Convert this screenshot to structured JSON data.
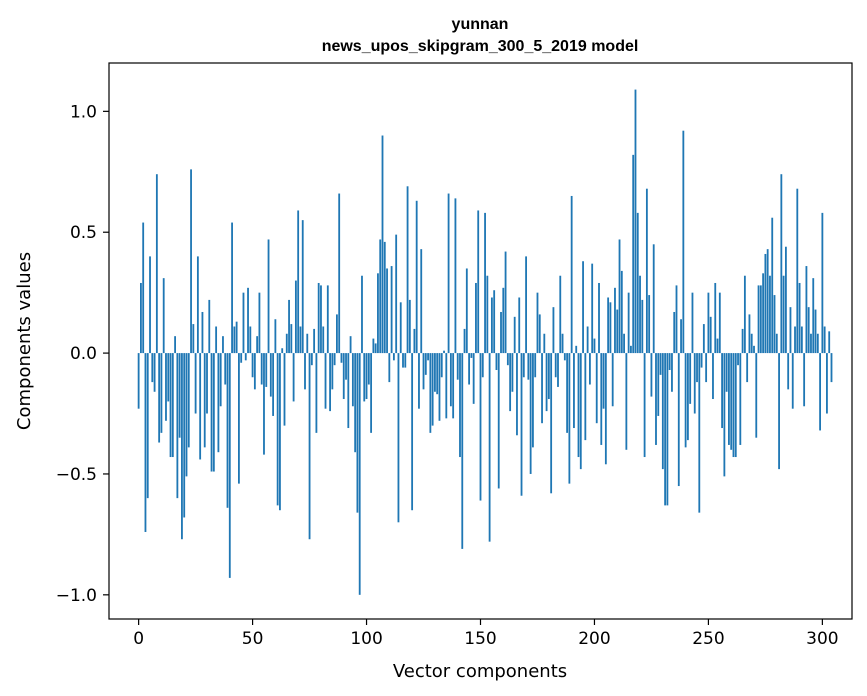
{
  "chart_data": {
    "type": "bar",
    "title_line1": "yunnan",
    "title_line2": "news_upos_skipgram_300_5_2019 model",
    "xlabel": "Vector components",
    "ylabel": "Components values",
    "xlim": [
      -13,
      313
    ],
    "ylim": [
      -1.1,
      1.2
    ],
    "xticks": [
      0,
      50,
      100,
      150,
      200,
      250,
      300
    ],
    "xtick_labels": [
      "0",
      "50",
      "100",
      "150",
      "200",
      "250",
      "300"
    ],
    "yticks": [
      -1.0,
      -0.5,
      0.0,
      0.5,
      1.0
    ],
    "ytick_labels": [
      "−1.0",
      "−0.5",
      "0.0",
      "0.5",
      "1.0"
    ],
    "bar_color": "#1f77b4",
    "values": [
      -0.23,
      0.29,
      0.54,
      -0.74,
      -0.6,
      0.4,
      -0.12,
      -0.16,
      0.74,
      -0.37,
      -0.33,
      0.31,
      -0.28,
      -0.2,
      -0.43,
      -0.43,
      0.07,
      -0.6,
      -0.35,
      -0.77,
      -0.68,
      -0.51,
      -0.39,
      0.76,
      0.12,
      -0.25,
      0.4,
      -0.44,
      0.17,
      -0.39,
      -0.25,
      0.22,
      -0.49,
      -0.49,
      0.11,
      -0.41,
      -0.22,
      0.07,
      -0.13,
      -0.64,
      -0.93,
      0.54,
      0.11,
      0.13,
      -0.54,
      -0.04,
      0.25,
      -0.03,
      0.27,
      0.11,
      -0.1,
      -0.15,
      0.07,
      0.25,
      -0.13,
      -0.42,
      -0.14,
      0.47,
      -0.18,
      -0.26,
      0.14,
      -0.63,
      -0.65,
      0.02,
      -0.3,
      0.08,
      0.22,
      0.12,
      -0.2,
      0.3,
      0.59,
      0.11,
      0.55,
      -0.15,
      0.08,
      -0.77,
      -0.05,
      0.1,
      -0.33,
      0.29,
      0.28,
      0.11,
      -0.23,
      0.28,
      -0.24,
      -0.15,
      -0.05,
      0.16,
      0.66,
      -0.04,
      -0.19,
      -0.11,
      -0.31,
      0.07,
      -0.22,
      -0.41,
      -0.66,
      -1.0,
      0.32,
      -0.2,
      -0.19,
      -0.13,
      -0.33,
      0.06,
      0.04,
      0.33,
      0.47,
      0.9,
      0.46,
      0.35,
      -0.12,
      0.36,
      -0.03,
      0.49,
      -0.7,
      0.21,
      -0.06,
      -0.06,
      0.69,
      0.22,
      -0.65,
      0.1,
      0.63,
      -0.23,
      0.43,
      -0.15,
      -0.09,
      -0.03,
      -0.33,
      -0.3,
      -0.16,
      -0.17,
      -0.28,
      -0.1,
      0.01,
      -0.27,
      0.66,
      -0.22,
      -0.27,
      0.64,
      -0.11,
      -0.43,
      -0.81,
      0.1,
      0.35,
      -0.13,
      -0.02,
      -0.21,
      0.29,
      0.59,
      -0.61,
      -0.1,
      0.58,
      0.32,
      -0.78,
      0.23,
      0.26,
      -0.07,
      -0.56,
      0.17,
      0.27,
      0.42,
      -0.05,
      -0.24,
      -0.16,
      0.15,
      -0.34,
      0.23,
      -0.59,
      -0.1,
      0.4,
      -0.11,
      -0.5,
      -0.39,
      -0.1,
      0.25,
      0.16,
      -0.29,
      0.08,
      -0.24,
      -0.19,
      -0.58,
      0.19,
      -0.1,
      -0.14,
      0.32,
      0.08,
      -0.03,
      -0.33,
      -0.54,
      0.65,
      -0.31,
      0.03,
      -0.43,
      -0.48,
      0.38,
      -0.36,
      0.11,
      -0.13,
      0.37,
      0.06,
      -0.29,
      0.29,
      -0.38,
      -0.23,
      -0.46,
      0.23,
      0.21,
      -0.22,
      0.27,
      0.18,
      0.47,
      0.34,
      0.08,
      -0.4,
      0.25,
      0.03,
      0.82,
      1.09,
      0.58,
      0.32,
      0.22,
      -0.43,
      0.68,
      0.24,
      -0.18,
      0.45,
      -0.38,
      -0.26,
      -0.09,
      -0.48,
      -0.63,
      -0.63,
      -0.07,
      -0.16,
      0.17,
      0.28,
      -0.55,
      0.14,
      0.92,
      -0.39,
      -0.36,
      -0.21,
      0.25,
      -0.25,
      -0.12,
      -0.66,
      -0.06,
      0.12,
      -0.12,
      0.25,
      0.15,
      -0.19,
      0.29,
      0.06,
      0.25,
      -0.31,
      -0.51,
      -0.16,
      -0.38,
      -0.4,
      -0.43,
      -0.43,
      -0.05,
      -0.38,
      0.1,
      0.32,
      -0.12,
      0.16,
      0.08,
      0.03,
      -0.35,
      0.28,
      0.28,
      0.33,
      0.41,
      0.43,
      0.32,
      0.56,
      0.24,
      0.08,
      -0.48,
      0.74,
      0.32,
      0.44,
      -0.15,
      0.19,
      -0.23,
      0.11,
      0.68,
      0.29,
      0.11,
      -0.22,
      0.36,
      0.19,
      0.08,
      0.31,
      0.18,
      0.08,
      -0.32,
      0.58,
      0.11,
      -0.25,
      0.09,
      -0.12
    ]
  }
}
